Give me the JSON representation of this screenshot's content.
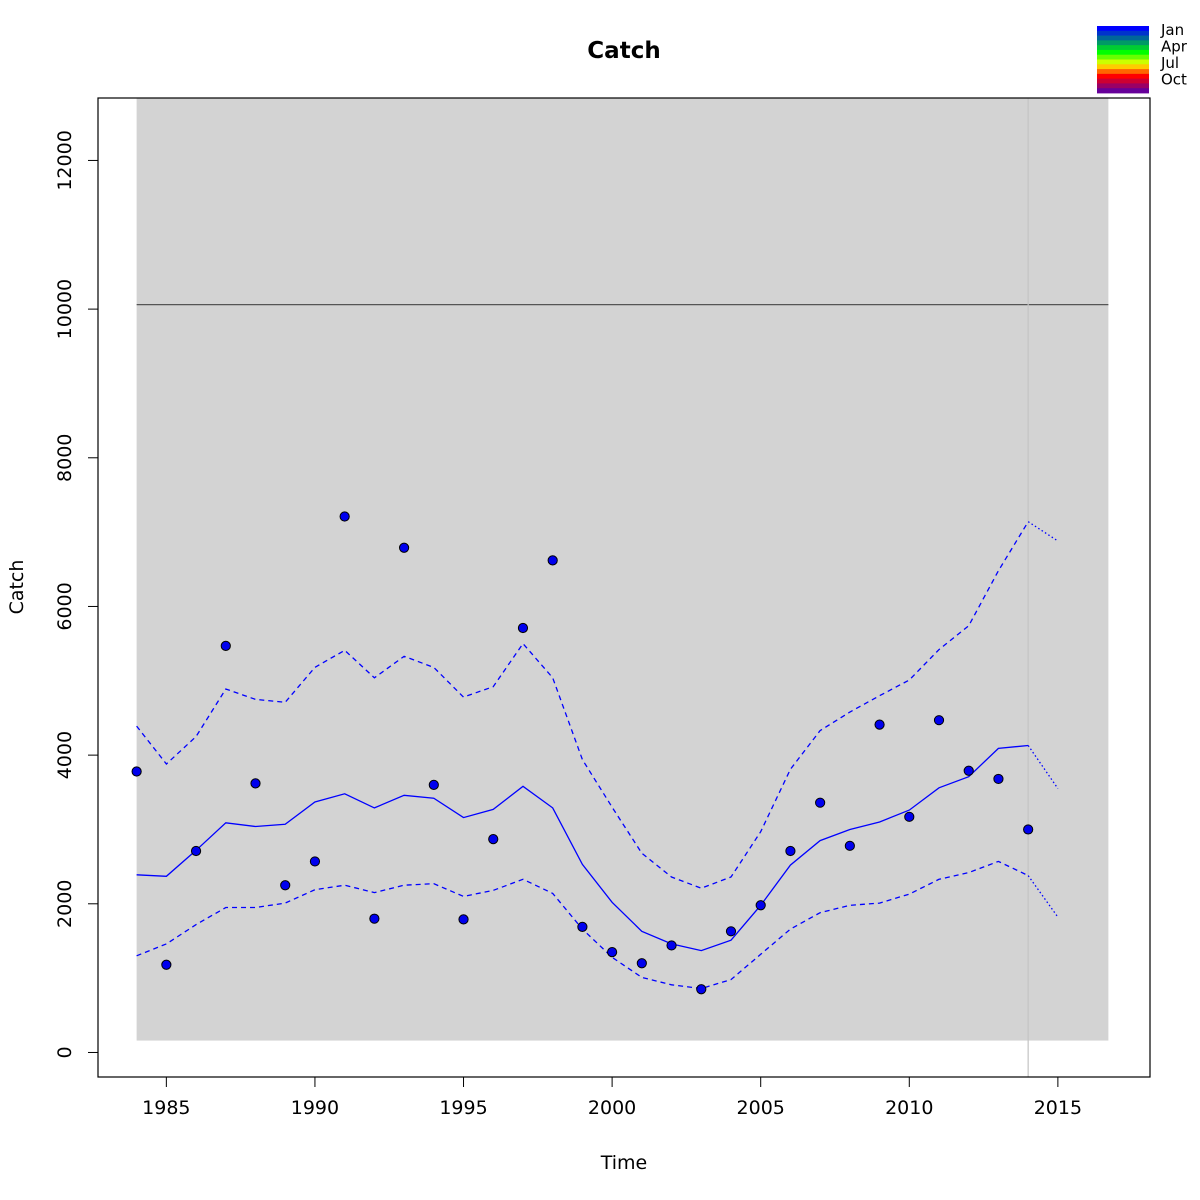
{
  "chart_data": {
    "type": "scatter",
    "title": "Catch",
    "xlabel": "Time",
    "ylabel": "Catch",
    "xlim": [
      1982.7,
      2018.1
    ],
    "ylim": [
      -330,
      12840
    ],
    "xticks": [
      1985,
      1990,
      1995,
      2000,
      2005,
      2010,
      2015
    ],
    "yticks": [
      0,
      2000,
      4000,
      6000,
      8000,
      10000,
      12000
    ],
    "background_band": {
      "x": [
        1984,
        2016.7
      ],
      "y": [
        160,
        12840
      ],
      "color": "#d3d3d3"
    },
    "reference_hline": 10060,
    "reference_vline": 2014,
    "observed": {
      "x": [
        1984,
        1985,
        1986,
        1987,
        1988,
        1989,
        1990,
        1991,
        1992,
        1993,
        1994,
        1995,
        1996,
        1997,
        1998,
        1999,
        2000,
        2001,
        2002,
        2003,
        2004,
        2005,
        2006,
        2007,
        2008,
        2009,
        2010,
        2011,
        2012,
        2013,
        2014
      ],
      "y": [
        3780,
        1180,
        2710,
        5470,
        3620,
        2250,
        2570,
        7210,
        1800,
        6790,
        3600,
        1790,
        2870,
        5710,
        6620,
        1690,
        1350,
        1200,
        1440,
        850,
        1630,
        1980,
        2710,
        3360,
        2780,
        4410,
        3170,
        4470,
        3790,
        3680,
        3000
      ],
      "color": "#0000ee"
    },
    "series": [
      {
        "style": "solid",
        "color": "#0000ff",
        "x": [
          1984,
          1985,
          1986,
          1987,
          1988,
          1989,
          1990,
          1991,
          1992,
          1993,
          1994,
          1995,
          1996,
          1997,
          1998,
          1999,
          2000,
          2001,
          2002,
          2003,
          2004,
          2005,
          2006,
          2007,
          2008,
          2009,
          2010,
          2011,
          2012,
          2013,
          2014
        ],
        "y": [
          2390,
          2370,
          2720,
          3090,
          3040,
          3070,
          3370,
          3480,
          3290,
          3460,
          3420,
          3160,
          3270,
          3580,
          3290,
          2530,
          2020,
          1630,
          1460,
          1370,
          1510,
          1980,
          2520,
          2850,
          3000,
          3100,
          3260,
          3560,
          3710,
          4090,
          4130
        ]
      },
      {
        "style": "dashed",
        "color": "#0000ff",
        "x": [
          1984,
          1985,
          1986,
          1987,
          1988,
          1989,
          1990,
          1991,
          1992,
          1993,
          1994,
          1995,
          1996,
          1997,
          1998,
          1999,
          2000,
          2001,
          2002,
          2003,
          2004,
          2005,
          2006,
          2007,
          2008,
          2009,
          2010,
          2011,
          2012,
          2013,
          2014
        ],
        "y": [
          4390,
          3880,
          4250,
          4890,
          4750,
          4710,
          5180,
          5410,
          5040,
          5330,
          5180,
          4780,
          4920,
          5500,
          5040,
          3940,
          3300,
          2680,
          2360,
          2210,
          2360,
          2970,
          3810,
          4330,
          4580,
          4800,
          5010,
          5420,
          5740,
          6480,
          7140
        ]
      },
      {
        "style": "dashed",
        "color": "#0000ff",
        "x": [
          1984,
          1985,
          1986,
          1987,
          1988,
          1989,
          1990,
          1991,
          1992,
          1993,
          1994,
          1995,
          1996,
          1997,
          1998,
          1999,
          2000,
          2001,
          2002,
          2003,
          2004,
          2005,
          2006,
          2007,
          2008,
          2009,
          2010,
          2011,
          2012,
          2013,
          2014
        ],
        "y": [
          1300,
          1460,
          1720,
          1950,
          1950,
          2010,
          2190,
          2250,
          2150,
          2250,
          2270,
          2100,
          2180,
          2330,
          2140,
          1660,
          1280,
          1010,
          910,
          860,
          980,
          1320,
          1660,
          1880,
          1980,
          2010,
          2130,
          2330,
          2420,
          2570,
          2380
        ]
      },
      {
        "style": "dotted",
        "color": "#0000ff",
        "x": [
          2014,
          2015
        ],
        "y": [
          4130,
          3550
        ]
      },
      {
        "style": "dotted",
        "color": "#0000ff",
        "x": [
          2014,
          2015
        ],
        "y": [
          7140,
          6880
        ]
      },
      {
        "style": "dotted",
        "color": "#0000ff",
        "x": [
          2014,
          2015
        ],
        "y": [
          2380,
          1820
        ]
      }
    ],
    "legend": {
      "placement": "top-right",
      "labels": [
        "Jan",
        "Apr",
        "Jul",
        "Oct"
      ],
      "colors": [
        "#0000ff",
        "#0033cc",
        "#006699",
        "#009966",
        "#00cc33",
        "#00ff00",
        "#66ff00",
        "#ccff00",
        "#ffcc00",
        "#ff6600",
        "#ff0000",
        "#cc0033",
        "#990066",
        "#660099"
      ]
    }
  }
}
